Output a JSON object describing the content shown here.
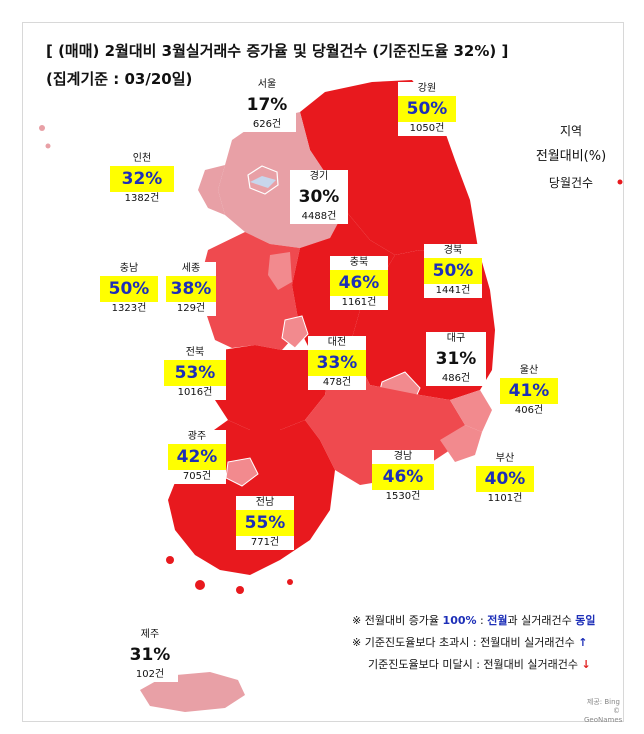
{
  "title": "[ (매매) 2월대비 3월실거래수 증가율 및 당월건수 (기준진도율 32%) ]",
  "subtitle": "(집계기준 : 03/20일)",
  "legend": {
    "line1": "지역",
    "line2": "전월대비(%)",
    "line3": "당월건수"
  },
  "regions": [
    {
      "id": "seoul",
      "name": "서울",
      "pct": "17%",
      "count": "626건",
      "highlight": false
    },
    {
      "id": "gangwon",
      "name": "강원",
      "pct": "50%",
      "count": "1050건",
      "highlight": true
    },
    {
      "id": "incheon",
      "name": "인천",
      "pct": "32%",
      "count": "1382건",
      "highlight": true
    },
    {
      "id": "gyeonggi",
      "name": "경기",
      "pct": "30%",
      "count": "4488건",
      "highlight": false
    },
    {
      "id": "chungnam",
      "name": "충남",
      "pct": "50%",
      "count": "1323건",
      "highlight": true
    },
    {
      "id": "sejong",
      "name": "세종",
      "pct": "38%",
      "count": "129건",
      "highlight": true
    },
    {
      "id": "chungbuk",
      "name": "충북",
      "pct": "46%",
      "count": "1161건",
      "highlight": true
    },
    {
      "id": "gyeongbuk",
      "name": "경북",
      "pct": "50%",
      "count": "1441건",
      "highlight": true
    },
    {
      "id": "daejeon",
      "name": "대전",
      "pct": "33%",
      "count": "478건",
      "highlight": true
    },
    {
      "id": "daegu",
      "name": "대구",
      "pct": "31%",
      "count": "486건",
      "highlight": false
    },
    {
      "id": "jeonbuk",
      "name": "전북",
      "pct": "53%",
      "count": "1016건",
      "highlight": true
    },
    {
      "id": "ulsan",
      "name": "울산",
      "pct": "41%",
      "count": "406건",
      "highlight": true
    },
    {
      "id": "gwangju",
      "name": "광주",
      "pct": "42%",
      "count": "705건",
      "highlight": true
    },
    {
      "id": "gyeongnam",
      "name": "경남",
      "pct": "46%",
      "count": "1530건",
      "highlight": true
    },
    {
      "id": "busan",
      "name": "부산",
      "pct": "40%",
      "count": "1101건",
      "highlight": true
    },
    {
      "id": "jeonnam",
      "name": "전남",
      "pct": "55%",
      "count": "771건",
      "highlight": true
    },
    {
      "id": "jeju",
      "name": "제주",
      "pct": "31%",
      "count": "102건",
      "highlight": false
    }
  ],
  "notes": {
    "n1_prefix": "※ 전월대비 증가율 ",
    "n1_value": "100%",
    "n1_sep": " : ",
    "n1_b1": "전월",
    "n1_mid": "과 실거래건수 ",
    "n1_b2": "동일",
    "n2_text": "※ 기준진도율보다 초과시 : 전월대비 실거래건수 ",
    "n2_arrow": "↑",
    "n3_text": "기준진도율보다 미달시 : 전월대비 실거래건수 ",
    "n3_arrow": "↓"
  },
  "credit": {
    "line1": "제공: Bing",
    "line2": "© GeoNames"
  },
  "colors": {
    "dark_red": "#e8191e",
    "mid_red": "#ef4a4f",
    "light_red": "#f28a8e",
    "pale_red": "#e8a0a6",
    "highlight": "#ffff00",
    "highlight_text": "#1d2fb8"
  }
}
